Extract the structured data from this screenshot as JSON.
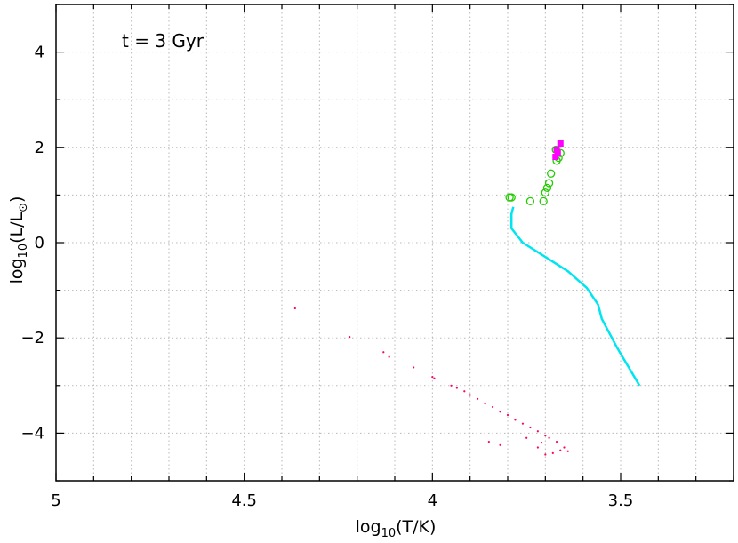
{
  "chart_data": {
    "type": "scatter",
    "annotation": "t = 3 Gyr",
    "xlabel": "log10(T/K)",
    "ylabel": "log10(L/L⊙)",
    "xlim": [
      5.0,
      3.2
    ],
    "ylim": [
      -5.0,
      5.0
    ],
    "x_reversed": true,
    "grid": true,
    "x_ticks": [
      {
        "value": 5,
        "label": "5"
      },
      {
        "value": 4.5,
        "label": "4.5"
      },
      {
        "value": 4,
        "label": "4"
      },
      {
        "value": 3.5,
        "label": "3.5"
      }
    ],
    "y_ticks": [
      {
        "value": 4,
        "label": "4"
      },
      {
        "value": 2,
        "label": "2"
      },
      {
        "value": 0,
        "label": "0"
      },
      {
        "value": -2,
        "label": "−2"
      },
      {
        "value": -4,
        "label": "−4"
      }
    ],
    "colors": {
      "main_sequence": "#00e5f0",
      "giants": "#22cc00",
      "agb": "#ff00ff",
      "white_dwarfs": "#ff0066",
      "grid": "#b8b8b8"
    },
    "series": [
      {
        "key": "main_sequence",
        "marker": "line",
        "points": [
          [
            3.45,
            -3.0
          ],
          [
            3.48,
            -2.6
          ],
          [
            3.51,
            -2.2
          ],
          [
            3.53,
            -1.9
          ],
          [
            3.55,
            -1.6
          ],
          [
            3.56,
            -1.3
          ],
          [
            3.59,
            -0.95
          ],
          [
            3.64,
            -0.6
          ],
          [
            3.7,
            -0.3
          ],
          [
            3.76,
            0.0
          ],
          [
            3.79,
            0.3
          ],
          [
            3.79,
            0.6
          ],
          [
            3.785,
            0.75
          ]
        ]
      },
      {
        "key": "giants",
        "marker": "open-circle",
        "points": [
          [
            3.795,
            0.95
          ],
          [
            3.79,
            0.95
          ],
          [
            3.74,
            0.87
          ],
          [
            3.705,
            0.87
          ],
          [
            3.7,
            1.05
          ],
          [
            3.695,
            1.15
          ],
          [
            3.69,
            1.25
          ],
          [
            3.685,
            1.45
          ],
          [
            3.67,
            1.72
          ],
          [
            3.665,
            1.78
          ],
          [
            3.66,
            1.88
          ],
          [
            3.672,
            1.95
          ]
        ]
      },
      {
        "key": "agb",
        "marker": "filled-square",
        "points": [
          [
            3.66,
            2.08
          ],
          [
            3.67,
            1.95
          ],
          [
            3.673,
            1.8
          ],
          [
            3.667,
            1.88
          ]
        ]
      },
      {
        "key": "white_dwarfs",
        "marker": "dot",
        "points": [
          [
            4.365,
            -1.38
          ],
          [
            4.22,
            -1.98
          ],
          [
            4.13,
            -2.3
          ],
          [
            4.115,
            -2.4
          ],
          [
            4.05,
            -2.62
          ],
          [
            4.0,
            -2.82
          ],
          [
            3.995,
            -2.85
          ],
          [
            3.95,
            -3.0
          ],
          [
            3.9,
            -3.2
          ],
          [
            3.86,
            -3.38
          ],
          [
            3.82,
            -3.55
          ],
          [
            3.78,
            -3.72
          ],
          [
            3.74,
            -3.88
          ],
          [
            3.7,
            -4.05
          ],
          [
            3.67,
            -4.18
          ],
          [
            3.65,
            -4.3
          ],
          [
            3.64,
            -4.38
          ],
          [
            3.66,
            -4.36
          ],
          [
            3.68,
            -4.42
          ],
          [
            3.7,
            -4.45
          ],
          [
            3.72,
            -4.3
          ],
          [
            3.85,
            -4.18
          ],
          [
            3.82,
            -4.25
          ],
          [
            3.75,
            -4.1
          ],
          [
            3.71,
            -4.2
          ],
          [
            3.935,
            -3.05
          ],
          [
            3.915,
            -3.12
          ],
          [
            3.88,
            -3.28
          ],
          [
            3.84,
            -3.45
          ],
          [
            3.8,
            -3.62
          ],
          [
            3.76,
            -3.8
          ],
          [
            3.72,
            -3.96
          ],
          [
            3.69,
            -4.1
          ]
        ]
      }
    ]
  }
}
